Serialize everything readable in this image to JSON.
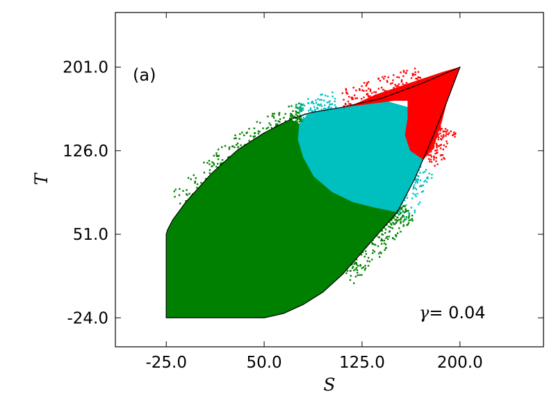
{
  "chart_data": {
    "type": "scatter",
    "title": "",
    "xlabel": "S",
    "ylabel": "T",
    "xlim": [
      -64,
      264
    ],
    "ylim": [
      -50,
      250
    ],
    "xticks": [
      -25,
      50,
      125,
      200
    ],
    "xtick_labels": [
      "-25.0",
      "50.0",
      "125.0",
      "200.0"
    ],
    "yticks": [
      -24,
      51,
      126,
      201
    ],
    "ytick_labels": [
      "-24.0",
      "51.0",
      "126.0",
      "201.0"
    ],
    "panel_label": "(a)",
    "annotation": {
      "symbol": "γ",
      "text": "= 0.04"
    },
    "grid": false,
    "legend": "none",
    "region_boundary": [
      [
        -25,
        -24
      ],
      [
        50,
        -24
      ],
      [
        65,
        -20
      ],
      [
        80,
        -12
      ],
      [
        95,
        -1
      ],
      [
        110,
        15
      ],
      [
        125,
        35
      ],
      [
        140,
        55
      ],
      [
        152,
        71
      ],
      [
        165,
        100
      ],
      [
        178,
        135
      ],
      [
        190,
        170
      ],
      [
        200,
        201
      ],
      [
        170,
        186
      ],
      [
        140,
        173
      ],
      [
        110,
        165
      ],
      [
        85,
        160
      ],
      [
        70,
        154
      ],
      [
        50,
        142
      ],
      [
        30,
        127
      ],
      [
        10,
        106
      ],
      [
        -10,
        80
      ],
      [
        -20,
        64
      ],
      [
        -24,
        55
      ],
      [
        -25,
        51
      ],
      [
        -25,
        -24
      ]
    ],
    "regions": [
      {
        "color": "#008000",
        "points": [
          [
            -25,
            -24
          ],
          [
            50,
            -24
          ],
          [
            65,
            -20
          ],
          [
            80,
            -12
          ],
          [
            95,
            -1
          ],
          [
            110,
            15
          ],
          [
            125,
            35
          ],
          [
            140,
            55
          ],
          [
            152,
            71
          ],
          [
            135,
            75
          ],
          [
            118,
            80
          ],
          [
            102,
            89
          ],
          [
            88,
            103
          ],
          [
            80,
            120
          ],
          [
            76,
            136
          ],
          [
            77,
            150
          ],
          [
            70,
            154
          ],
          [
            50,
            142
          ],
          [
            30,
            127
          ],
          [
            10,
            106
          ],
          [
            -10,
            80
          ],
          [
            -20,
            64
          ],
          [
            -24,
            55
          ],
          [
            -25,
            51
          ]
        ]
      },
      {
        "color": "#00bfbf",
        "points": [
          [
            77,
            150
          ],
          [
            76,
            136
          ],
          [
            80,
            120
          ],
          [
            88,
            103
          ],
          [
            102,
            89
          ],
          [
            118,
            80
          ],
          [
            135,
            75
          ],
          [
            152,
            71
          ],
          [
            165,
            100
          ],
          [
            178,
            135
          ],
          [
            185,
            150
          ],
          [
            175,
            160
          ],
          [
            160,
            165
          ],
          [
            145,
            170
          ],
          [
            130,
            168
          ],
          [
            110,
            165
          ],
          [
            85,
            160
          ]
        ]
      },
      {
        "color": "#ff0000",
        "points": [
          [
            110,
            165
          ],
          [
            130,
            168
          ],
          [
            150,
            171
          ],
          [
            160,
            171
          ],
          [
            160,
            155
          ],
          [
            158,
            140
          ],
          [
            162,
            126
          ],
          [
            172,
            118
          ],
          [
            180,
            130
          ],
          [
            186,
            152
          ],
          [
            190,
            170
          ],
          [
            200,
            201
          ],
          [
            188,
            197
          ],
          [
            170,
            190
          ],
          [
            150,
            182
          ],
          [
            135,
            176
          ],
          [
            120,
            168
          ]
        ]
      }
    ],
    "scatter_spread": [
      {
        "color": "#008000",
        "count": 260,
        "along": [
          [
            -14,
            78
          ],
          [
            10,
            106
          ],
          [
            30,
            127
          ],
          [
            50,
            142
          ],
          [
            70,
            154
          ],
          [
            80,
            156
          ]
        ],
        "side": "upper"
      },
      {
        "color": "#008000",
        "count": 220,
        "along": [
          [
            110,
            15
          ],
          [
            125,
            35
          ],
          [
            140,
            55
          ],
          [
            150,
            68
          ],
          [
            158,
            76
          ]
        ],
        "side": "lower"
      },
      {
        "color": "#00bfbf",
        "count": 120,
        "along": [
          [
            78,
            156
          ],
          [
            90,
            163
          ],
          [
            105,
            166
          ]
        ],
        "side": "upper"
      },
      {
        "color": "#00bfbf",
        "count": 90,
        "along": [
          [
            150,
            68
          ],
          [
            160,
            90
          ],
          [
            170,
            112
          ]
        ],
        "side": "lower"
      },
      {
        "color": "#ff0000",
        "count": 140,
        "along": [
          [
            110,
            168
          ],
          [
            130,
            175
          ],
          [
            150,
            182
          ],
          [
            170,
            190
          ]
        ],
        "side": "upper"
      },
      {
        "color": "#ff0000",
        "count": 110,
        "along": [
          [
            172,
            120
          ],
          [
            180,
            130
          ],
          [
            186,
            148
          ]
        ],
        "side": "lower"
      }
    ]
  }
}
